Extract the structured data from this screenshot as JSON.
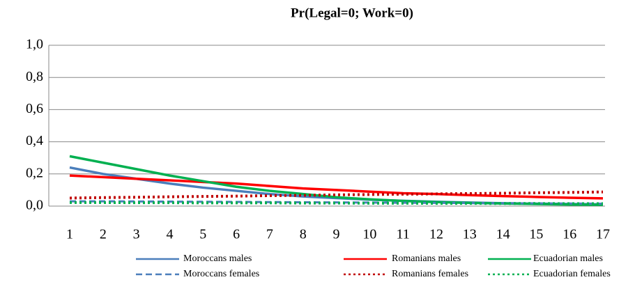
{
  "chart_data": {
    "type": "line",
    "title": "Pr(Legal=0; Work=0)",
    "categories": [
      "1",
      "2",
      "3",
      "4",
      "5",
      "6",
      "7",
      "8",
      "9",
      "10",
      "11",
      "12",
      "13",
      "14",
      "15",
      "16",
      "17"
    ],
    "series": [
      {
        "name": "Moroccans males",
        "color": "#4a7ebb",
        "style": "solid",
        "values": [
          0.24,
          0.2,
          0.17,
          0.14,
          0.115,
          0.095,
          0.075,
          0.06,
          0.05,
          0.04,
          0.033,
          0.027,
          0.022,
          0.018,
          0.015,
          0.013,
          0.011
        ]
      },
      {
        "name": "Romanians males",
        "color": "#ff0000",
        "style": "solid",
        "values": [
          0.19,
          0.18,
          0.17,
          0.16,
          0.15,
          0.14,
          0.125,
          0.11,
          0.1,
          0.09,
          0.08,
          0.075,
          0.068,
          0.062,
          0.057,
          0.052,
          0.048
        ]
      },
      {
        "name": "Ecuadorian males",
        "color": "#00b050",
        "style": "solid",
        "values": [
          0.31,
          0.27,
          0.23,
          0.19,
          0.155,
          0.12,
          0.095,
          0.075,
          0.055,
          0.042,
          0.032,
          0.025,
          0.02,
          0.016,
          0.013,
          0.01,
          0.008
        ]
      },
      {
        "name": "Moroccans females",
        "color": "#4a7ebb",
        "style": "dashed",
        "values": [
          0.03,
          0.03,
          0.029,
          0.028,
          0.027,
          0.026,
          0.025,
          0.024,
          0.023,
          0.022,
          0.021,
          0.02,
          0.019,
          0.018,
          0.017,
          0.016,
          0.015
        ]
      },
      {
        "name": "Romanians females",
        "color": "#c00000",
        "style": "dotted",
        "values": [
          0.05,
          0.053,
          0.055,
          0.058,
          0.06,
          0.062,
          0.065,
          0.067,
          0.07,
          0.072,
          0.074,
          0.076,
          0.078,
          0.08,
          0.083,
          0.085,
          0.088
        ]
      },
      {
        "name": "Ecuadorian females",
        "color": "#00b050",
        "style": "dotted",
        "values": [
          0.022,
          0.022,
          0.021,
          0.021,
          0.02,
          0.02,
          0.02,
          0.019,
          0.019,
          0.018,
          0.018,
          0.017,
          0.017,
          0.016,
          0.016,
          0.015,
          0.015
        ]
      }
    ],
    "ylim": [
      0,
      1
    ],
    "yticks": [
      {
        "value": 0,
        "label": "0,0"
      },
      {
        "value": 0.2,
        "label": "0,2"
      },
      {
        "value": 0.4,
        "label": "0,4"
      },
      {
        "value": 0.6,
        "label": "0,6"
      },
      {
        "value": 0.8,
        "label": "0,8"
      },
      {
        "value": 1,
        "label": "1,0"
      }
    ],
    "grid": true,
    "legend": "bottom"
  }
}
